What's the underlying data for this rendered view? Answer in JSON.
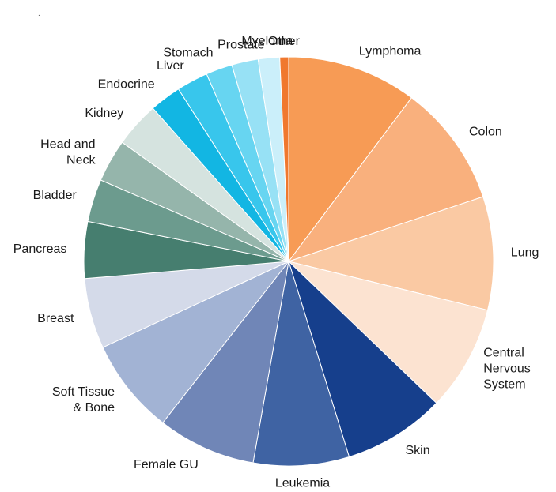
{
  "chart_data": {
    "type": "pie",
    "labels": [
      "Lymphoma",
      "Colon",
      "Lung",
      "Central Nervous System",
      "Skin",
      "Leukemia",
      "Female GU",
      "Soft Tissue & Bone",
      "Breast",
      "Pancreas",
      "Bladder",
      "Head and Neck",
      "Kidney",
      "Endocrine",
      "Liver",
      "Stomach",
      "Prostate",
      "Myeloma",
      "Other"
    ],
    "display_labels": [
      [
        "Lymphoma"
      ],
      [
        "Colon"
      ],
      [
        "Lung"
      ],
      [
        "Central",
        "Nervous",
        "System"
      ],
      [
        "Skin"
      ],
      [
        "Leukemia"
      ],
      [
        "Female GU"
      ],
      [
        "Soft Tissue",
        "& Bone"
      ],
      [
        "Breast"
      ],
      [
        "Pancreas"
      ],
      [
        "Bladder"
      ],
      [
        "Head and",
        "Neck"
      ],
      [
        "Kidney"
      ],
      [
        "Endocrine"
      ],
      [
        "Liver"
      ],
      [
        "Stomach"
      ],
      [
        "Prostate"
      ],
      [
        "Myeloma"
      ],
      [
        "Other"
      ]
    ],
    "values": [
      10.3,
      9.7,
      9.0,
      8.4,
      8.1,
      7.6,
      7.8,
      7.6,
      5.6,
      4.5,
      3.4,
      3.4,
      3.6,
      2.5,
      2.5,
      2.1,
      2.1,
      1.7,
      0.7
    ],
    "colors": [
      "#F79B55",
      "#F9B07D",
      "#FAC9A3",
      "#FCE3D1",
      "#163F8C",
      "#3F63A3",
      "#7086B7",
      "#A2B3D4",
      "#D4DAE9",
      "#467E6F",
      "#6C9B8E",
      "#95B5AB",
      "#D5E3DF",
      "#12B6E3",
      "#38C6EC",
      "#67D5F1",
      "#97E1F5",
      "#CBEFFA",
      "#F0782E"
    ],
    "start_angle_deg": 0,
    "direction": "clockwise",
    "legend": "none (labels placed around pie)"
  },
  "corner_mark": "."
}
